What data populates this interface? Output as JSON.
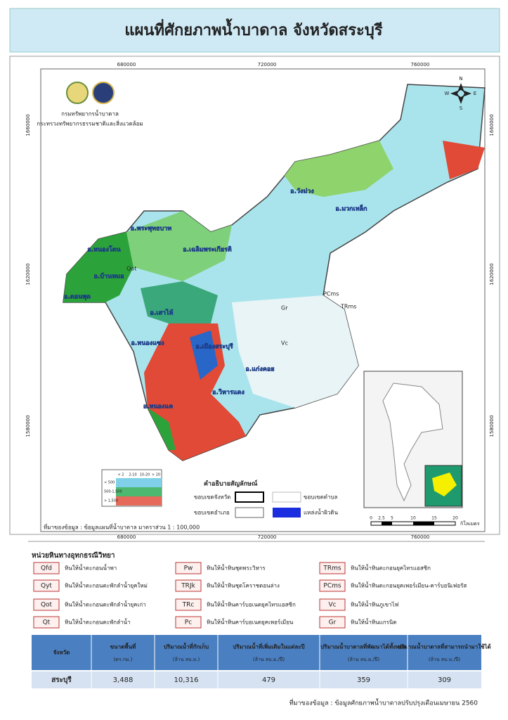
{
  "header": {
    "title": "แผนที่ศักยภาพน้ำบาดาล จังหวัดสระบุรี"
  },
  "map": {
    "coords_x": [
      "680000",
      "720000",
      "760000"
    ],
    "coords_y": [
      "1660000",
      "1620000",
      "1580000"
    ],
    "agency": [
      "กรมทรัพยากรน้ำบาดาล",
      "กระทรวงทรัพยากรธรรมชาติและสิ่งแวดล้อม"
    ],
    "compass": [
      "N",
      "E",
      "S",
      "W"
    ],
    "districts": [
      "อ.พระพุทธบาท",
      "อ.หนองโดน",
      "อ.เฉลิมพระเกียรติ",
      "อ.บ้านหมอ",
      "อ.ดอนพุด",
      "อ.เสาไห้",
      "อ.หนองแซง",
      "อ.เมืองสระบุรี",
      "อ.แก่งคอย",
      "อ.วิหารแดง",
      "อ.หนองแค",
      "อ.วังม่วง",
      "อ.มวกเหล็ก"
    ],
    "geo_codes": [
      "Vc",
      "Gr",
      "PCms",
      "TRms",
      "Qot"
    ],
    "matrix": {
      "columns": [
        "< 2",
        "2-10",
        "10-20",
        "> 20"
      ],
      "rows": [
        "< 500",
        "500-1,500",
        "> 1,500"
      ]
    },
    "legend": {
      "title": "คำอธิบายสัญลักษณ์",
      "items": [
        "ขอบเขตจังหวัด",
        "ขอบเขตตำบล",
        "ขอบเขตอำเภอ",
        "แหล่งน้ำผิวดิน"
      ]
    },
    "scale": {
      "ticks": [
        "0",
        "2.5",
        "5",
        "10",
        "15",
        "20"
      ],
      "unit": "กิโลเมตร"
    },
    "source": "ที่มาของข้อมูล : ข้อมูลแผนที่น้ำบาดาล มาตราส่วน 1 : 100,000"
  },
  "rock_units": {
    "title": "หน่วยหินทางอุทกธรณีวิทยา",
    "items": [
      {
        "code": "Qfd",
        "desc": "หินให้น้ำตะกอนน้ำพา"
      },
      {
        "code": "Qyt",
        "desc": "หินให้น้ำตะกอนตะพักลำน้ำยุคใหม่"
      },
      {
        "code": "Qot",
        "desc": "หินให้น้ำตะกอนตะพักลำน้ำยุคเก่า"
      },
      {
        "code": "Qt",
        "desc": "หินให้น้ำตะกอนตะพักลำน้ำ"
      },
      {
        "code": "Pw",
        "desc": "หินให้น้ำหินชุดพระวิหาร"
      },
      {
        "code": "TRJk",
        "desc": "หินให้น้ำหินชุดโคราชตอนล่าง"
      },
      {
        "code": "TRc",
        "desc": "หินให้น้ำหินคาร์บอเนตยุคไทรแอสซิก"
      },
      {
        "code": "Pc",
        "desc": "หินให้น้ำหินคาร์บอเนตยุคเพอร์เมียน"
      },
      {
        "code": "TRms",
        "desc": "หินให้น้ำหินตะกอนยุคไทรแอสซิก"
      },
      {
        "code": "PCms",
        "desc": "หินให้น้ำหินตะกอนยุคเพอร์เมียน-คาร์บอนิเฟอรัส"
      },
      {
        "code": "Vc",
        "desc": "หินให้น้ำหินภูเขาไฟ"
      },
      {
        "code": "Gr",
        "desc": "หินให้น้ำหินแกรนิต"
      }
    ]
  },
  "table": {
    "headers": [
      {
        "title": "จังหวัด",
        "unit": null
      },
      {
        "title": "ขนาดพื้นที่",
        "unit": "(ตร.กม.)"
      },
      {
        "title": "ปริมาณน้ำที่กักเก็บ",
        "unit": "(ล้าน ลบ.ม.)"
      },
      {
        "title": "ปริมาณน้ำที่เพิ่มเติมในแต่ละปี",
        "unit": "(ล้าน ลบ.ม./ปี)"
      },
      {
        "title": "ปริมาณน้ำบาดาลที่พัฒนาได้ทั้งหมด",
        "unit": "(ล้าน ลบ.ม./ปี)"
      },
      {
        "title": "ปริมาณน้ำบาดาลที่สามารถนำมาใช้ได้",
        "unit": "(ล้าน ลบ.ม./ปี)"
      }
    ],
    "rows": [
      [
        "สระบุรี",
        "3,488",
        "10,316",
        "479",
        "359",
        "309"
      ]
    ]
  },
  "footer": {
    "source": "ที่มาของข้อมูล : ข้อมูลศักยภาพน้ำบาดาลปรับปรุงเดือนเมษายน 2560"
  }
}
